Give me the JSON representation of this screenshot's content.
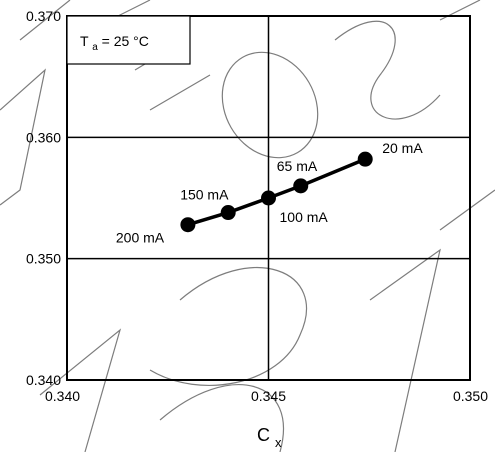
{
  "chart_data": {
    "type": "line",
    "xlabel": "C",
    "xlabel_sub": "x",
    "ylabel": "",
    "xlim": [
      0.34,
      0.35
    ],
    "ylim": [
      0.34,
      0.37
    ],
    "x_ticks": [
      0.34,
      0.345,
      0.35
    ],
    "y_ticks": [
      0.34,
      0.35,
      0.36,
      0.37
    ],
    "x_tick_labels": [
      "0.340",
      "0.345",
      "0.350"
    ],
    "y_tick_labels": [
      "0.340",
      "0.350",
      "0.360",
      "0.370"
    ],
    "grid": true,
    "series": [
      {
        "x": [
          0.343,
          0.344,
          0.345,
          0.3458,
          0.3474
        ],
        "y": [
          0.3528,
          0.3538,
          0.355,
          0.356,
          0.3582
        ],
        "labels": [
          "200 mA",
          "150 mA",
          "100 mA",
          "65 mA",
          "20 mA"
        ],
        "color": "#000000"
      }
    ],
    "legend": {
      "label_main": "T",
      "label_sub": "a",
      "label_rest": " = 25 °C",
      "placement": "top-left"
    }
  }
}
